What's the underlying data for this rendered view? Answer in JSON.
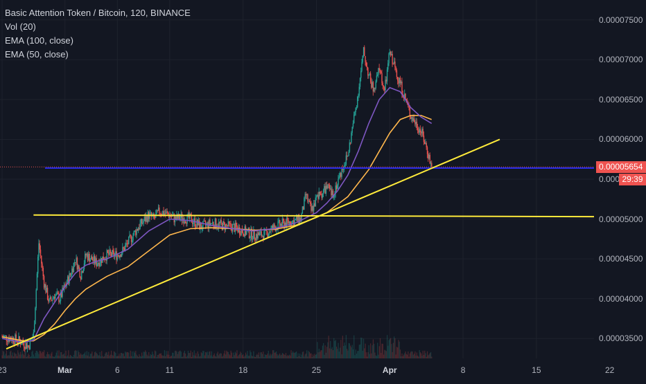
{
  "legend": {
    "title": "Basic Attention Token / Bitcoin, 120, BINANCE",
    "vol": "Vol (20)",
    "ema100": "EMA (100, close)",
    "ema50": "EMA (50, close)"
  },
  "colors": {
    "background": "#131722",
    "up": "#26a69a",
    "down": "#ef5350",
    "ema100": "#ffb74d",
    "ema50": "#7e57c2",
    "trendline": "#ffeb3b",
    "hline": "#2a2ef0"
  },
  "chart_data": {
    "type": "line",
    "title": "Basic Attention Token / Bitcoin, 120, BINANCE",
    "x_ticks": [
      "23",
      "Mar",
      "6",
      "11",
      "18",
      "25",
      "Apr",
      "8",
      "15",
      "22"
    ],
    "x_ticks_bold": [
      "Mar",
      "Apr"
    ],
    "x_tick_days": [
      -6,
      0,
      5,
      10,
      17,
      24,
      31,
      38,
      45,
      52
    ],
    "x_range_days": [
      -6.2,
      50.5
    ],
    "y_ticks": [
      "0.00007500",
      "0.00007000",
      "0.00006500",
      "0.00006000",
      "0.00005500",
      "0.00005000",
      "0.00004500",
      "0.00004000",
      "0.00003500"
    ],
    "y_tick_values": [
      7.5e-05,
      7e-05,
      6.5e-05,
      6e-05,
      5.5e-05,
      5e-05,
      4.5e-05,
      4e-05,
      3.5e-05
    ],
    "ylim": [
      3.25e-05,
      7.75e-05
    ],
    "last_price": "0.00005654",
    "last_price_value": 5.654e-05,
    "countdown": "29:39",
    "price_path": {
      "days": [
        -6,
        -5,
        -4,
        -3.5,
        -3,
        -2.8,
        -2.5,
        -2,
        -1.5,
        -1,
        -0.5,
        0,
        0.5,
        1,
        1.5,
        2,
        3,
        4,
        5,
        5.5,
        6,
        7,
        8,
        8.5,
        9,
        10,
        10.5,
        11,
        12,
        13,
        14,
        15,
        16,
        17,
        18,
        19,
        20,
        21,
        22,
        22.5,
        23,
        23.5,
        24,
        25,
        25.5,
        26,
        26.5,
        27,
        27.5,
        28,
        28.5,
        29,
        29.5,
        30,
        30.5,
        31,
        31.5,
        32,
        32.5,
        33,
        33.5,
        34,
        34.5,
        35
      ],
      "values": [
        3.52e-05,
        3.5e-05,
        3.45e-05,
        3.4e-05,
        3.55e-05,
        4e-05,
        4.7e-05,
        4.2e-05,
        3.95e-05,
        4.05e-05,
        4e-05,
        4.15e-05,
        4.3e-05,
        4.5e-05,
        4.3e-05,
        4.55e-05,
        4.45e-05,
        4.55e-05,
        4.55e-05,
        4.6e-05,
        4.7e-05,
        4.9e-05,
        5.05e-05,
        5e-05,
        5.1e-05,
        5.05e-05,
        5e-05,
        5.02e-05,
        5e-05,
        4.9e-05,
        4.95e-05,
        4.92e-05,
        4.9e-05,
        4.85e-05,
        4.8e-05,
        4.8e-05,
        4.9e-05,
        4.95e-05,
        4.98e-05,
        5e-05,
        5.3e-05,
        5.1e-05,
        5.25e-05,
        5.4e-05,
        5.3e-05,
        5.45e-05,
        5.65e-05,
        5.8e-05,
        6.2e-05,
        6.6e-05,
        7.1e-05,
        6.8e-05,
        6.6e-05,
        6.9e-05,
        6.6e-05,
        7.1e-05,
        6.9e-05,
        6.7e-05,
        6.5e-05,
        6.3e-05,
        6.2e-05,
        6.1e-05,
        5.9e-05,
        5.65e-05
      ]
    },
    "ema50_path": {
      "days": [
        -6,
        -4,
        -3,
        -2,
        -1,
        0,
        1,
        2,
        3,
        4,
        6,
        8,
        10,
        12,
        14,
        16,
        18,
        20,
        22,
        24,
        25,
        26,
        27,
        28,
        29,
        30,
        31,
        32,
        33,
        34,
        35
      ],
      "values": [
        3.5e-05,
        3.45e-05,
        3.48e-05,
        3.75e-05,
        3.95e-05,
        4.15e-05,
        4.32e-05,
        4.42e-05,
        4.47e-05,
        4.5e-05,
        4.62e-05,
        4.85e-05,
        5e-05,
        4.98e-05,
        4.92e-05,
        4.88e-05,
        4.85e-05,
        4.88e-05,
        4.95e-05,
        5.08e-05,
        5.2e-05,
        5.35e-05,
        5.55e-05,
        5.85e-05,
        6.2e-05,
        6.5e-05,
        6.65e-05,
        6.6e-05,
        6.4e-05,
        6.28e-05,
        6.2e-05
      ]
    },
    "ema100_path": {
      "days": [
        -6,
        -4,
        -3,
        -2,
        -1,
        0,
        1,
        2,
        3,
        4,
        6,
        8,
        10,
        12,
        14,
        16,
        18,
        20,
        22,
        24,
        25,
        26,
        27,
        28,
        29,
        30,
        31,
        32,
        33,
        34,
        35
      ],
      "values": [
        3.52e-05,
        3.47e-05,
        3.47e-05,
        3.55e-05,
        3.68e-05,
        3.85e-05,
        4e-05,
        4.12e-05,
        4.2e-05,
        4.28e-05,
        4.4e-05,
        4.6e-05,
        4.8e-05,
        4.88e-05,
        4.89e-05,
        4.88e-05,
        4.86e-05,
        4.87e-05,
        4.92e-05,
        5.02e-05,
        5.08e-05,
        5.18e-05,
        5.28e-05,
        5.45e-05,
        5.62e-05,
        5.85e-05,
        6.08e-05,
        6.25e-05,
        6.3e-05,
        6.3e-05,
        6.25e-05
      ]
    },
    "trendline_rising": {
      "days": [
        -5.6,
        41.5
      ],
      "values": [
        3.37e-05,
        6e-05
      ]
    },
    "trendline_horizontal": {
      "days": [
        -3,
        50.5
      ],
      "values": [
        5.05e-05,
        5.03e-05
      ]
    },
    "horizontal_line_value": 5.64e-05,
    "grid": true
  }
}
